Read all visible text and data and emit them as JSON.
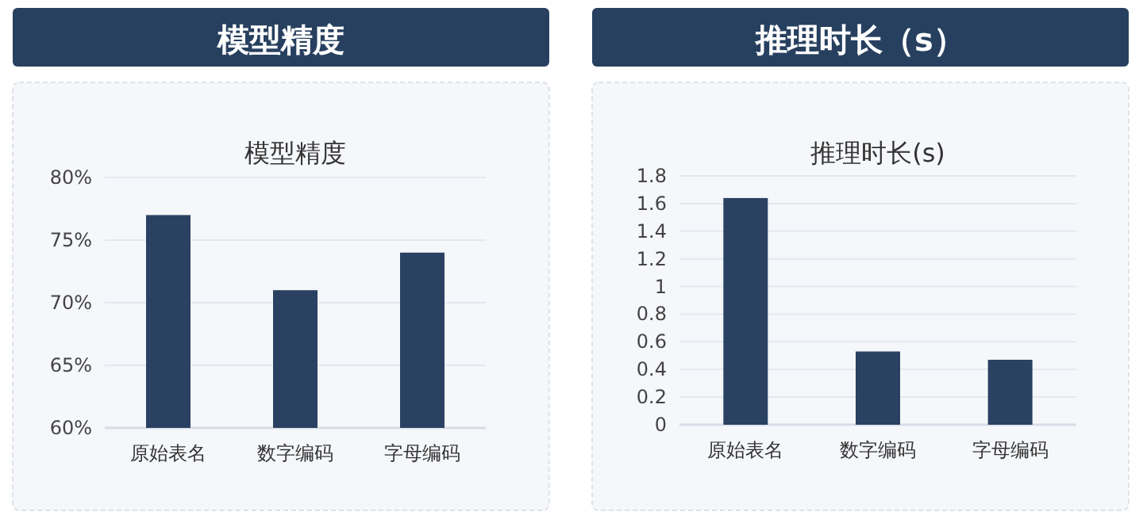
{
  "chart_data": [
    {
      "type": "bar",
      "title": "模型精度",
      "subtitle": "模型精度",
      "categories": [
        "原始表名",
        "数字编码",
        "字母编码"
      ],
      "values": [
        77,
        71,
        74
      ],
      "color": "#2a4162",
      "ylim": [
        60,
        80
      ],
      "yticks": [
        {
          "value": 60,
          "label": "60%"
        },
        {
          "value": 65,
          "label": "65%"
        },
        {
          "value": 70,
          "label": "70%"
        },
        {
          "value": 75,
          "label": "75%"
        },
        {
          "value": 80,
          "label": "80%"
        }
      ],
      "grid": "y"
    },
    {
      "type": "bar",
      "title": "推理时长（s）",
      "subtitle": "推理时长(s)",
      "categories": [
        "原始表名",
        "数字编码",
        "字母编码"
      ],
      "values": [
        1.64,
        0.53,
        0.47
      ],
      "color": "#2a4162",
      "ylim": [
        0,
        1.8
      ],
      "yticks": [
        0,
        0.2,
        0.4,
        0.6,
        0.8,
        1,
        1.2,
        1.4,
        1.6,
        1.8
      ],
      "grid": "y"
    }
  ]
}
